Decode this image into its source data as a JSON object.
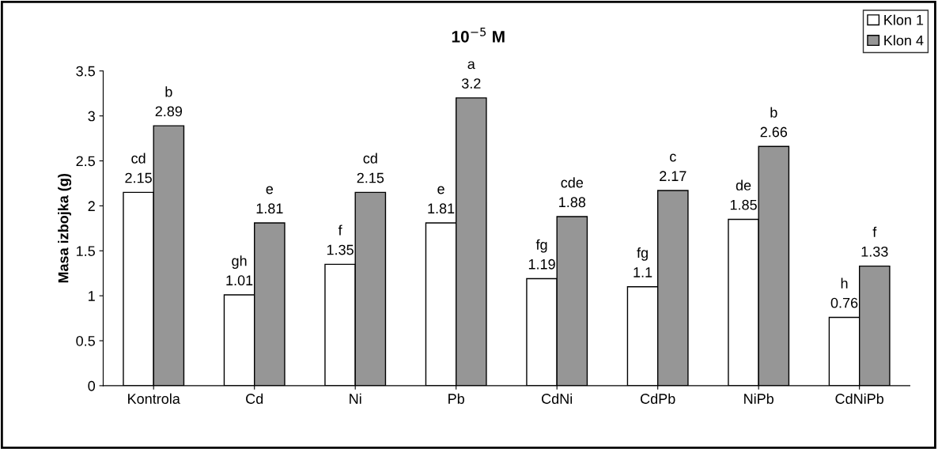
{
  "chart_data": {
    "type": "bar",
    "title": "10$^{−5}$ M",
    "ylabel": "Masa izbojka (g)",
    "categories": [
      "Kontrola",
      "Cd",
      "Ni",
      "Pb",
      "CdNi",
      "CdPb",
      "NiPb",
      "CdNiPb"
    ],
    "series": [
      {
        "name": "Klon 1",
        "color": "#ffffff",
        "values": [
          2.15,
          1.01,
          1.35,
          1.81,
          1.19,
          1.1,
          1.85,
          0.76
        ],
        "value_labels": [
          "cd\n2.15",
          "gh\n1.01",
          "f\n1.35",
          "e\n1.81",
          "fg\n1.19",
          "fg\n1.1",
          "de\n1.85",
          "h\n0.76"
        ]
      },
      {
        "name": "Klon 4",
        "color": "#969696",
        "values": [
          2.89,
          1.81,
          2.15,
          3.2,
          1.88,
          2.17,
          2.66,
          1.33
        ],
        "value_labels": [
          "b\n2.89",
          "e\n1.81",
          "cd\n2.15",
          "a\n3.2",
          "cde\n1.88",
          "c\n2.17",
          "b\n2.66",
          "f\n1.33"
        ]
      }
    ],
    "ylim": [
      0,
      3.5
    ],
    "yticks": [
      0,
      0.5,
      1,
      1.5,
      2,
      2.5,
      3,
      3.5
    ],
    "grid": false,
    "legend": "top right"
  }
}
